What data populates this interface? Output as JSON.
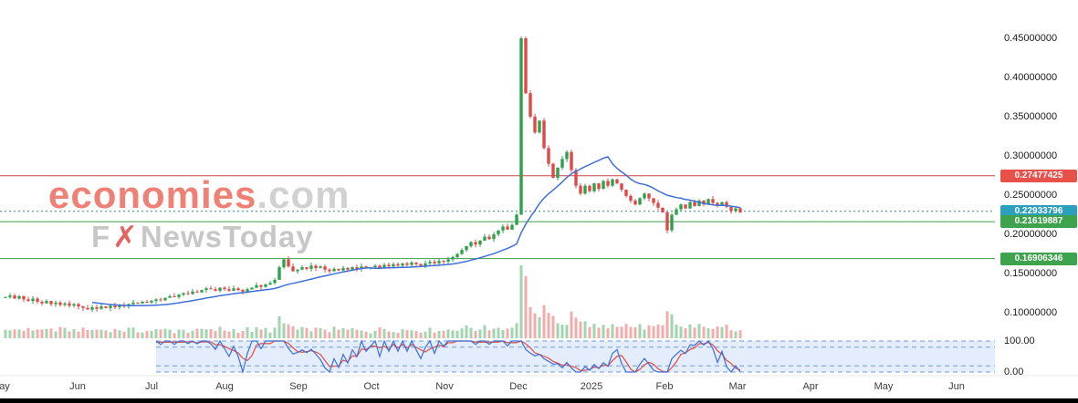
{
  "watermark": {
    "brand_red": "economies",
    "brand_gray": ".com",
    "line2_prefix": "F",
    "line2_x": "✗",
    "line2_suffix": "NewsToday"
  },
  "colors": {
    "up": "#2fa14d",
    "down": "#e04848",
    "volume_up": "rgba(46,160,77,0.45)",
    "volume_down": "rgba(224,72,72,0.45)",
    "ma_line": "#3f6fd8",
    "level_red": "#cc4444",
    "level_green": "#3c9e4d",
    "current_dotted": "#35808e",
    "badge_red": "#e8504a",
    "badge_teal": "#2b9fbc",
    "badge_green": "#3fa34d",
    "osc_blue": "#3f6fd8",
    "osc_red": "#e0564e",
    "band_fill": "rgba(130,175,235,0.22)",
    "band_dash": "#6f9be0",
    "axis_separator": "#e8e8e8"
  },
  "axis": {
    "price_labels": [
      {
        "text": "0.45000000",
        "price": 0.45
      },
      {
        "text": "0.40000000",
        "price": 0.4
      },
      {
        "text": "0.35000000",
        "price": 0.35
      },
      {
        "text": "0.30000000",
        "price": 0.3
      },
      {
        "text": "0.25000000",
        "price": 0.25
      },
      {
        "text": "0.20000000",
        "price": 0.2
      },
      {
        "text": "0.15000000",
        "price": 0.15
      },
      {
        "text": "0.10000000",
        "price": 0.1
      }
    ],
    "price_badges": [
      {
        "text": "0.27477425",
        "price": 0.27477425,
        "color": "badge_red"
      },
      {
        "text": "0.22933796",
        "price": 0.22933796,
        "color": "badge_teal"
      },
      {
        "text": "0.21619887",
        "price": 0.21619887,
        "color": "badge_green"
      },
      {
        "text": "0.16906346",
        "price": 0.16906346,
        "color": "badge_green"
      }
    ],
    "oscillator_labels": [
      {
        "text": "100.00",
        "value": 100
      },
      {
        "text": "0.00",
        "value": 0
      }
    ],
    "time_labels": [
      {
        "text": "ay",
        "x": 5
      },
      {
        "text": "Jun",
        "x": 85
      },
      {
        "text": "Jul",
        "x": 166
      },
      {
        "text": "Aug",
        "x": 246
      },
      {
        "text": "Sep",
        "x": 327
      },
      {
        "text": "Oct",
        "x": 407
      },
      {
        "text": "Nov",
        "x": 487
      },
      {
        "text": "Dec",
        "x": 568
      },
      {
        "text": "2025",
        "x": 648
      },
      {
        "text": "Feb",
        "x": 728
      },
      {
        "text": "Mar",
        "x": 808
      },
      {
        "text": "Apr",
        "x": 888
      },
      {
        "text": "May",
        "x": 968
      },
      {
        "text": "Jun",
        "x": 1048
      }
    ]
  },
  "chart_data": {
    "type": "candlestick",
    "y_range": [
      0.1,
      0.45
    ],
    "months": [
      "May",
      "Jun",
      "Jul",
      "Aug",
      "Sep",
      "Oct",
      "Nov",
      "Dec",
      "2025",
      "Feb",
      "Mar"
    ],
    "candles_per_month": 16,
    "levels": [
      {
        "price": 0.27477425,
        "style": "solid",
        "color": "level_red",
        "label": "0.27477425"
      },
      {
        "price": 0.22933796,
        "style": "dotted",
        "color": "current_dotted",
        "label": "0.22933796"
      },
      {
        "price": 0.21619887,
        "style": "solid",
        "color": "level_green",
        "label": "0.21619887"
      },
      {
        "price": 0.16906346,
        "style": "solid",
        "color": "level_green",
        "label": "0.16906346"
      }
    ],
    "closes": [
      0.12,
      0.122,
      0.118,
      0.121,
      0.117,
      0.115,
      0.118,
      0.114,
      0.112,
      0.115,
      0.111,
      0.113,
      0.11,
      0.112,
      0.109,
      0.111,
      0.108,
      0.106,
      0.104,
      0.107,
      0.105,
      0.108,
      0.106,
      0.109,
      0.107,
      0.11,
      0.108,
      0.111,
      0.113,
      0.112,
      0.114,
      0.113,
      0.115,
      0.117,
      0.116,
      0.119,
      0.121,
      0.12,
      0.123,
      0.125,
      0.124,
      0.127,
      0.126,
      0.129,
      0.131,
      0.13,
      0.128,
      0.132,
      0.13,
      0.128,
      0.131,
      0.129,
      0.127,
      0.13,
      0.132,
      0.135,
      0.133,
      0.136,
      0.138,
      0.142,
      0.158,
      0.168,
      0.159,
      0.153,
      0.155,
      0.158,
      0.156,
      0.16,
      0.157,
      0.159,
      0.155,
      0.153,
      0.156,
      0.154,
      0.157,
      0.155,
      0.158,
      0.156,
      0.159,
      0.157,
      0.158,
      0.16,
      0.157,
      0.161,
      0.159,
      0.162,
      0.16,
      0.163,
      0.161,
      0.164,
      0.162,
      0.16,
      0.163,
      0.165,
      0.163,
      0.166,
      0.165,
      0.168,
      0.171,
      0.175,
      0.18,
      0.185,
      0.19,
      0.187,
      0.192,
      0.197,
      0.194,
      0.2,
      0.205,
      0.21,
      0.206,
      0.212,
      0.225,
      0.45,
      0.38,
      0.35,
      0.33,
      0.345,
      0.31,
      0.29,
      0.272,
      0.285,
      0.296,
      0.305,
      0.282,
      0.262,
      0.252,
      0.262,
      0.255,
      0.265,
      0.258,
      0.268,
      0.262,
      0.27,
      0.265,
      0.257,
      0.249,
      0.243,
      0.238,
      0.246,
      0.252,
      0.246,
      0.24,
      0.234,
      0.228,
      0.205,
      0.225,
      0.232,
      0.238,
      0.233,
      0.241,
      0.236,
      0.243,
      0.238,
      0.245,
      0.24,
      0.236,
      0.241,
      0.235,
      0.23,
      0.233,
      0.228
    ],
    "indicators": {
      "moving_average": {
        "color": "ma_line"
      },
      "oscillator": {
        "range": [
          0,
          100
        ],
        "bands": [
          20,
          80
        ]
      }
    }
  }
}
